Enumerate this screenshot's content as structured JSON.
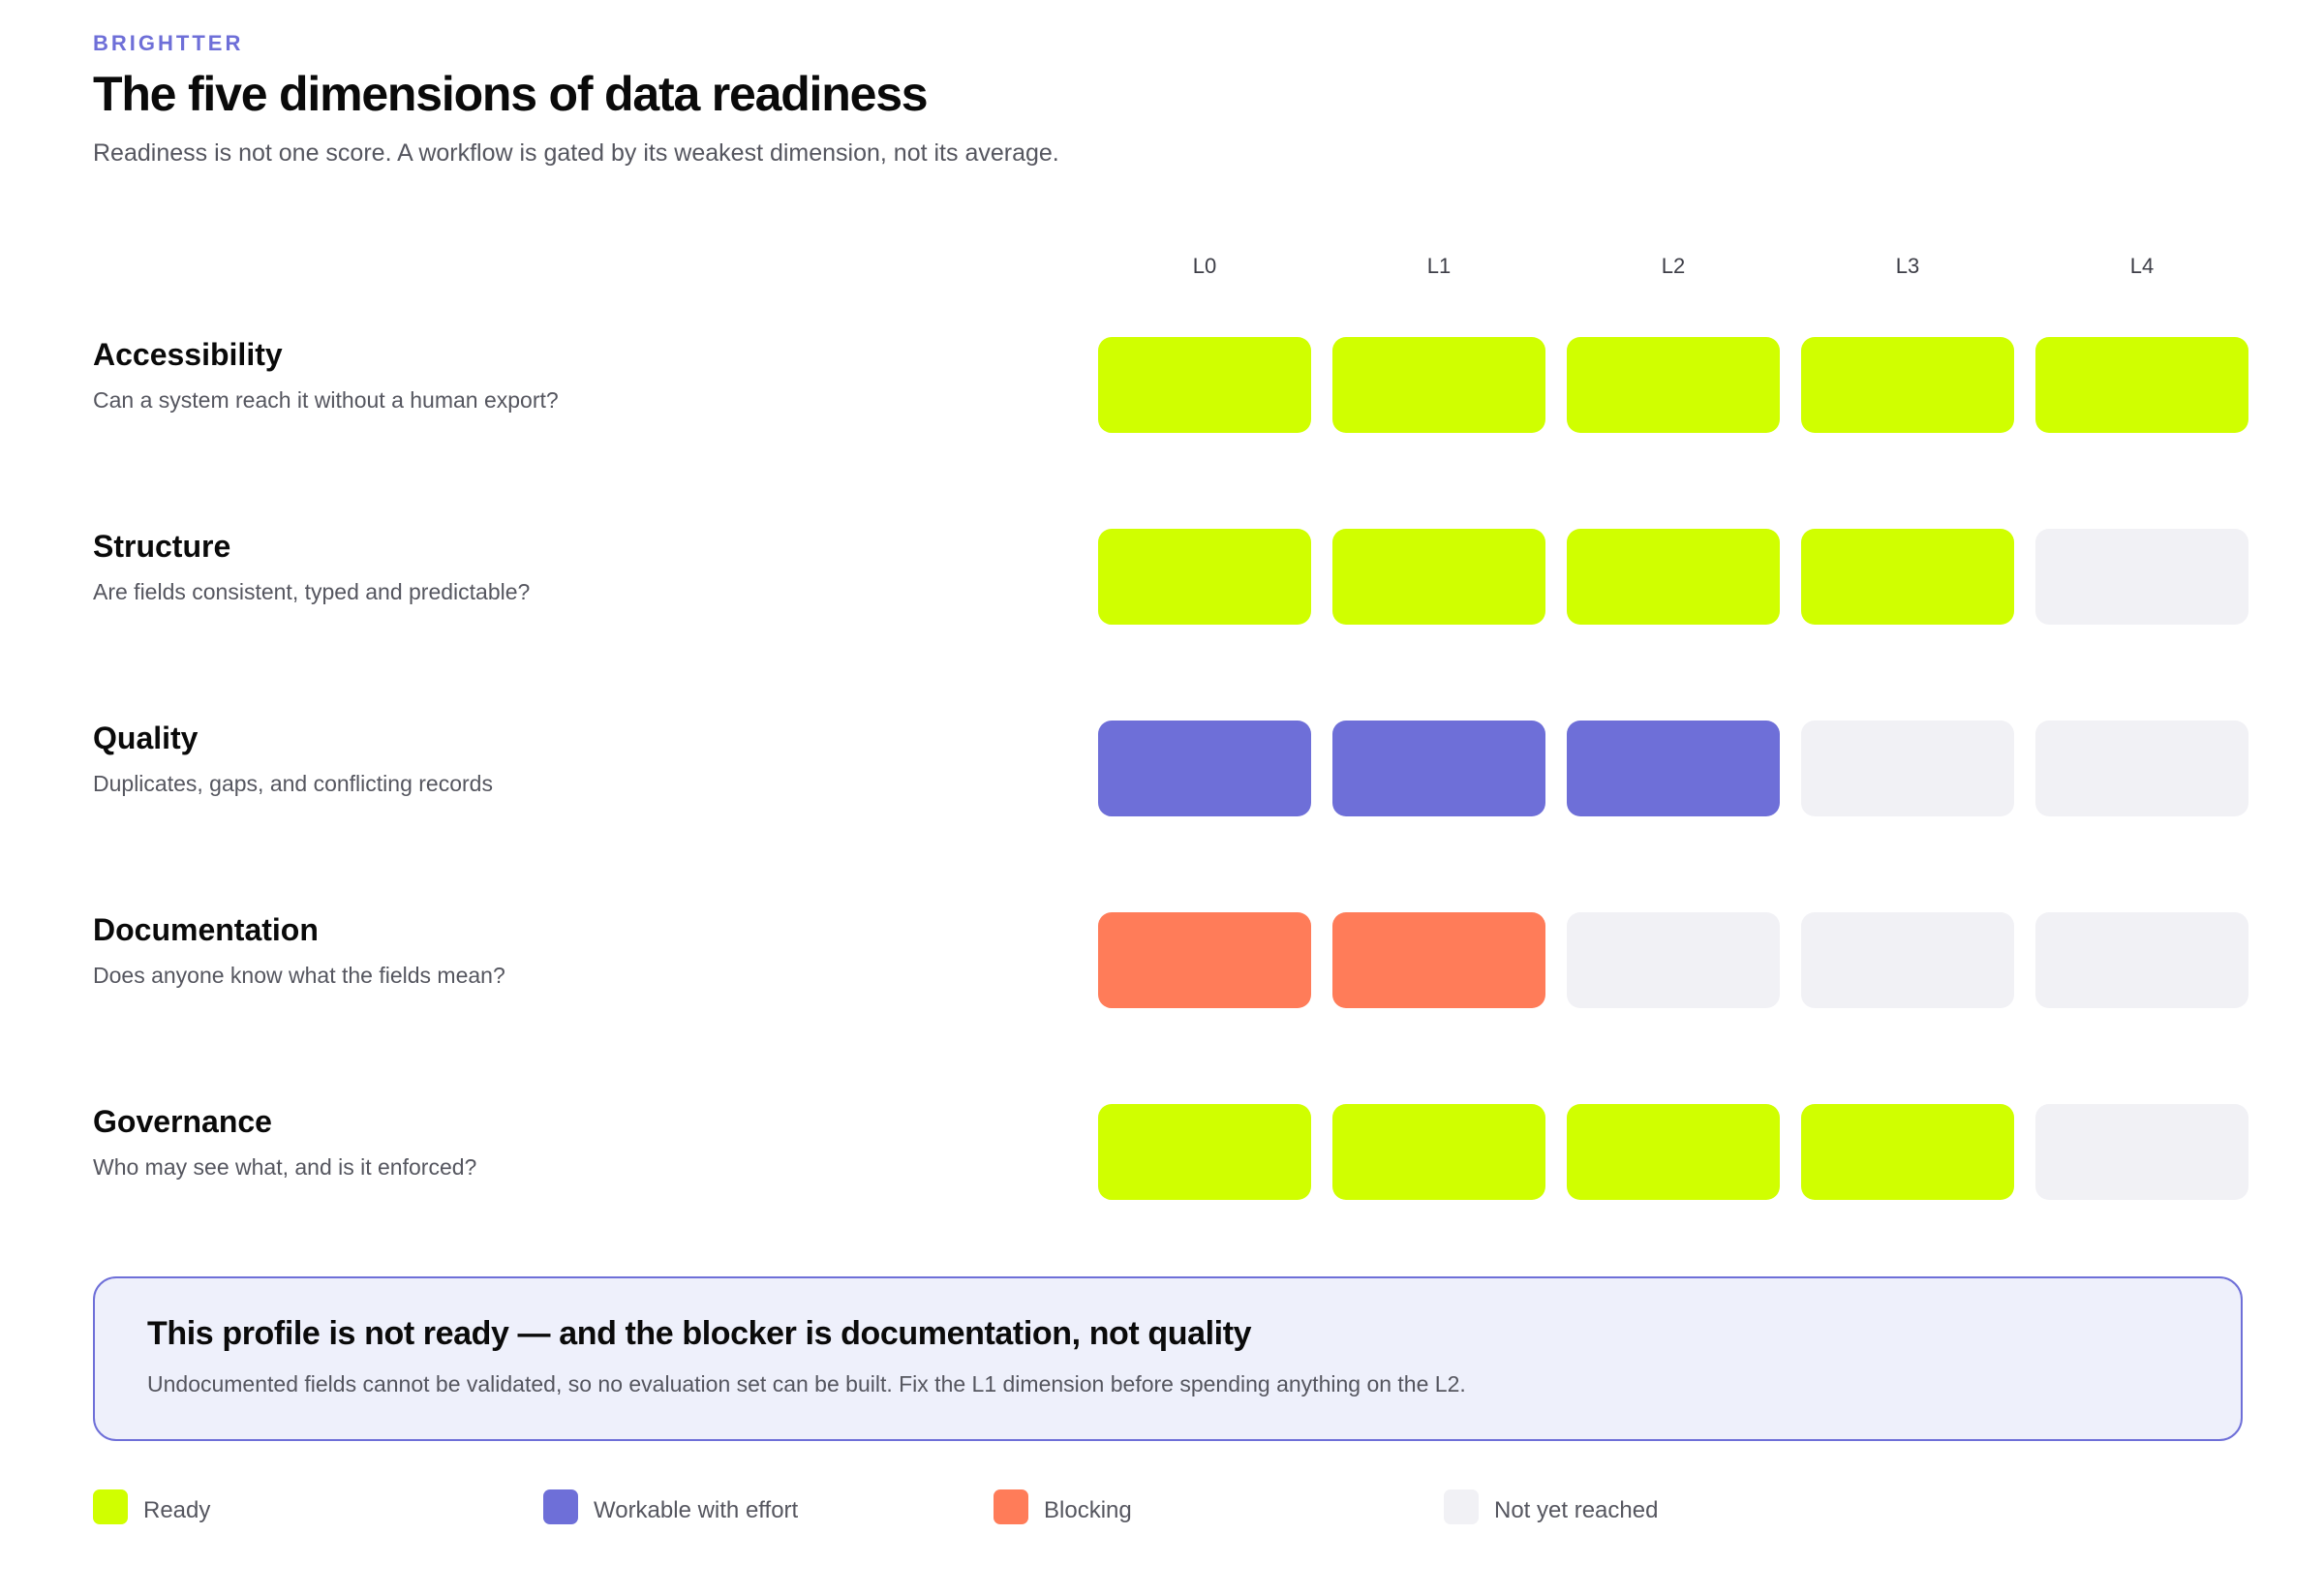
{
  "brand": "BRIGHTTER",
  "title": "The five dimensions of data readiness",
  "subtitle": "Readiness is not one score. A workflow is gated by its weakest dimension, not its average.",
  "colors": {
    "ready": "#d0ff00",
    "workable": "#6e6fd8",
    "blocking": "#ff7c59",
    "not_reached": "#f1f1f5",
    "accent": "#6e6fd8"
  },
  "chart_data": {
    "type": "heatmap",
    "columns": [
      "L0",
      "L1",
      "L2",
      "L3",
      "L4"
    ],
    "rows": [
      {
        "name": "Accessibility",
        "description": "Can a system reach it without a human export?",
        "cells": [
          "ready",
          "ready",
          "ready",
          "ready",
          "ready"
        ]
      },
      {
        "name": "Structure",
        "description": "Are fields consistent, typed and predictable?",
        "cells": [
          "ready",
          "ready",
          "ready",
          "ready",
          "not_reached"
        ]
      },
      {
        "name": "Quality",
        "description": "Duplicates, gaps, and conflicting records",
        "cells": [
          "workable",
          "workable",
          "workable",
          "not_reached",
          "not_reached"
        ]
      },
      {
        "name": "Documentation",
        "description": "Does anyone know what the fields mean?",
        "cells": [
          "blocking",
          "blocking",
          "not_reached",
          "not_reached",
          "not_reached"
        ]
      },
      {
        "name": "Governance",
        "description": "Who may see what, and is it enforced?",
        "cells": [
          "ready",
          "ready",
          "ready",
          "ready",
          "not_reached"
        ]
      }
    ],
    "legend": [
      {
        "key": "ready",
        "label": "Ready"
      },
      {
        "key": "workable",
        "label": "Workable with effort"
      },
      {
        "key": "blocking",
        "label": "Blocking"
      },
      {
        "key": "not_reached",
        "label": "Not yet reached"
      }
    ]
  },
  "callout": {
    "title": "This profile is not ready — and the blocker is documentation, not quality",
    "body": "Undocumented fields cannot be validated, so no evaluation set can be built. Fix the L1 dimension before spending anything on the L2."
  }
}
